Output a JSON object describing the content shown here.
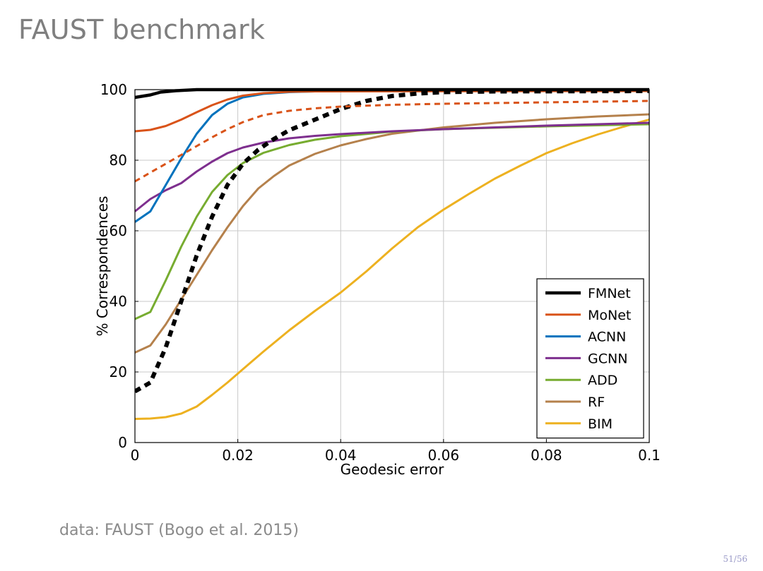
{
  "slide": {
    "title": "FAUST benchmark",
    "footnote": "data: FAUST (Bogo et al. 2015)",
    "page_number": "51/56"
  },
  "chart_data": {
    "type": "line",
    "title": "",
    "xlabel": "Geodesic error",
    "ylabel": "% Correspondences",
    "xlim": [
      0,
      0.1
    ],
    "ylim": [
      0,
      100
    ],
    "xticks": [
      0,
      0.02,
      0.04,
      0.06,
      0.08,
      0.1
    ],
    "xtick_labels": [
      "0",
      "0.02",
      "0.04",
      "0.06",
      "0.08",
      "0.1"
    ],
    "yticks": [
      0,
      20,
      40,
      60,
      80,
      100
    ],
    "ytick_labels": [
      "0",
      "20",
      "40",
      "60",
      "80",
      "100"
    ],
    "grid": true,
    "legend_position": "bottom-right",
    "series": [
      {
        "name": "FMNet",
        "color": "#000000",
        "style": "solid",
        "width": 4.5,
        "in_legend": true,
        "x": [
          0,
          0.003,
          0.005,
          0.008,
          0.012,
          0.02,
          0.1
        ],
        "y": [
          97.8,
          98.5,
          99.3,
          99.7,
          100,
          100,
          100
        ]
      },
      {
        "name": "MoNet",
        "color": "#d95319",
        "style": "solid",
        "width": 3,
        "in_legend": true,
        "x": [
          0,
          0.003,
          0.006,
          0.009,
          0.012,
          0.015,
          0.018,
          0.021,
          0.025,
          0.03,
          0.035,
          0.1
        ],
        "y": [
          88.2,
          88.6,
          89.7,
          91.5,
          93.6,
          95.6,
          97.2,
          98.3,
          99.0,
          99.4,
          99.5,
          99.6
        ]
      },
      {
        "name": "ACNN",
        "color": "#0072bd",
        "style": "solid",
        "width": 3,
        "in_legend": true,
        "x": [
          0,
          0.003,
          0.006,
          0.009,
          0.012,
          0.015,
          0.018,
          0.021,
          0.025,
          0.03,
          0.035,
          0.04,
          0.1
        ],
        "y": [
          62.5,
          65.5,
          73,
          80.5,
          87.5,
          92.8,
          96.0,
          97.8,
          98.8,
          99.3,
          99.5,
          99.6,
          99.7
        ]
      },
      {
        "name": "GCNN",
        "color": "#7e2f8e",
        "style": "solid",
        "width": 3,
        "in_legend": true,
        "x": [
          0,
          0.003,
          0.006,
          0.009,
          0.012,
          0.015,
          0.018,
          0.021,
          0.025,
          0.03,
          0.035,
          0.04,
          0.05,
          0.06,
          0.08,
          0.1
        ],
        "y": [
          65.5,
          69,
          71.5,
          73.5,
          76.8,
          79.6,
          82,
          83.6,
          85,
          86.2,
          86.9,
          87.4,
          88.2,
          88.8,
          89.8,
          90.6
        ]
      },
      {
        "name": "ADD",
        "color": "#77ac30",
        "style": "solid",
        "width": 3,
        "in_legend": true,
        "x": [
          0,
          0.003,
          0.006,
          0.009,
          0.012,
          0.015,
          0.018,
          0.021,
          0.025,
          0.03,
          0.035,
          0.04,
          0.05,
          0.06,
          0.08,
          0.1
        ],
        "y": [
          35,
          37,
          46,
          55.5,
          64,
          71,
          75.8,
          79.2,
          82.1,
          84.3,
          85.8,
          86.8,
          88.1,
          88.8,
          89.6,
          90.2
        ]
      },
      {
        "name": "RF",
        "color": "#b5814c",
        "style": "solid",
        "width": 3,
        "in_legend": true,
        "x": [
          0,
          0.003,
          0.006,
          0.009,
          0.012,
          0.015,
          0.018,
          0.021,
          0.024,
          0.027,
          0.03,
          0.035,
          0.04,
          0.045,
          0.05,
          0.06,
          0.07,
          0.08,
          0.09,
          0.1
        ],
        "y": [
          25.5,
          27.5,
          33.5,
          40.5,
          47.5,
          54.5,
          61,
          67,
          72,
          75.5,
          78.5,
          81.8,
          84.2,
          86,
          87.5,
          89.3,
          90.6,
          91.6,
          92.4,
          93.0
        ]
      },
      {
        "name": "BIM",
        "color": "#edb120",
        "style": "solid",
        "width": 3,
        "in_legend": true,
        "x": [
          0,
          0.003,
          0.006,
          0.009,
          0.012,
          0.015,
          0.018,
          0.021,
          0.025,
          0.03,
          0.035,
          0.04,
          0.045,
          0.05,
          0.055,
          0.06,
          0.065,
          0.07,
          0.075,
          0.08,
          0.085,
          0.09,
          0.095,
          0.1
        ],
        "y": [
          6.7,
          6.8,
          7.2,
          8.2,
          10.2,
          13.5,
          17,
          20.8,
          25.8,
          31.8,
          37.3,
          42.5,
          48.5,
          55,
          61,
          66,
          70.5,
          74.8,
          78.5,
          82,
          84.8,
          87.3,
          89.5,
          91.5
        ]
      },
      {
        "name": "FMNet (dashed)",
        "color": "#000000",
        "style": "dashed",
        "width": 6,
        "in_legend": false,
        "x": [
          0,
          0.003,
          0.006,
          0.009,
          0.012,
          0.015,
          0.018,
          0.021,
          0.024,
          0.027,
          0.03,
          0.035,
          0.04,
          0.045,
          0.05,
          0.055,
          0.06,
          0.07,
          0.1
        ],
        "y": [
          14.5,
          17,
          27,
          40,
          53,
          64,
          73,
          79,
          83,
          86,
          88.5,
          91.5,
          94.5,
          96.8,
          98.2,
          98.9,
          99.3,
          99.5,
          99.6
        ]
      },
      {
        "name": "MoNet (dashed)",
        "color": "#d95319",
        "style": "dashed",
        "width": 3,
        "in_legend": false,
        "x": [
          0,
          0.003,
          0.006,
          0.009,
          0.012,
          0.015,
          0.018,
          0.021,
          0.025,
          0.03,
          0.035,
          0.04,
          0.05,
          0.06,
          0.08,
          0.1
        ],
        "y": [
          74,
          76.5,
          79,
          81.5,
          84,
          86.5,
          88.8,
          90.8,
          92.8,
          94,
          94.7,
          95.2,
          95.7,
          96.0,
          96.4,
          96.8
        ]
      }
    ]
  }
}
